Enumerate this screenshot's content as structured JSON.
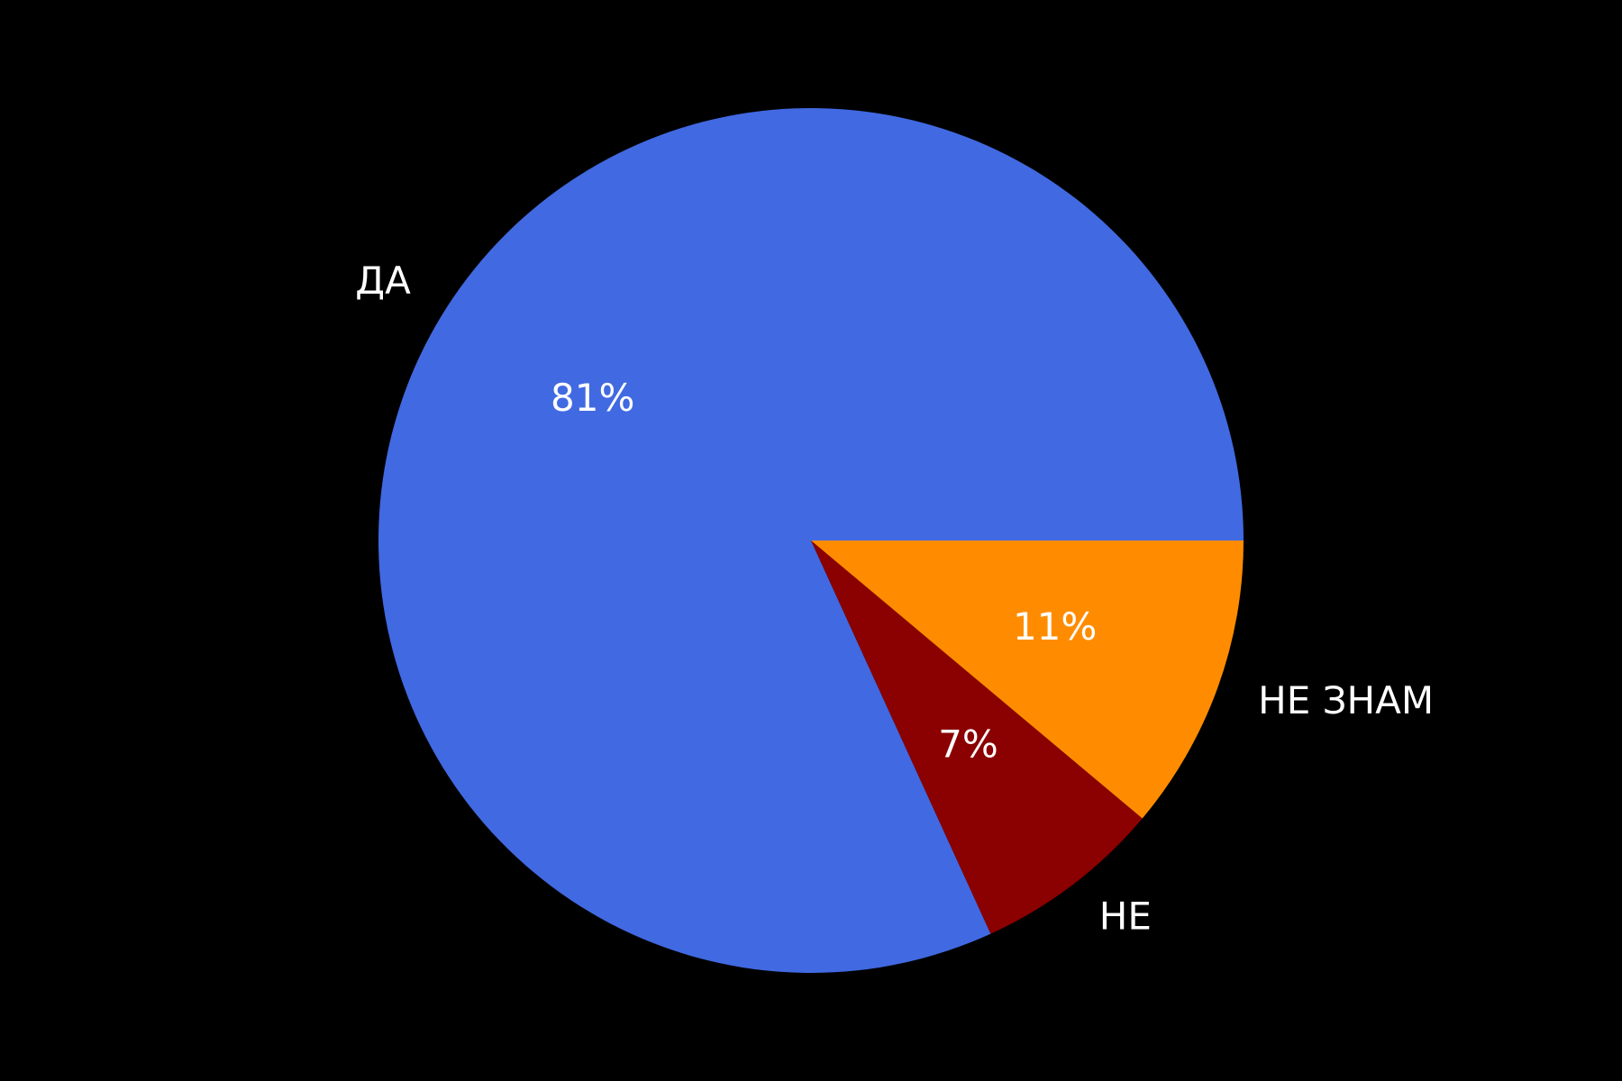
{
  "chart_data": {
    "type": "pie",
    "categories": [
      "ДА",
      "НЕ",
      "НЕ ЗНАМ"
    ],
    "values": [
      81,
      7,
      11
    ],
    "value_labels": [
      "81%",
      "7%",
      "11%"
    ],
    "colors": [
      "#4169E1",
      "#8B0000",
      "#FF8C00"
    ],
    "start_angle_deg": 0,
    "direction": "counterclockwise",
    "background": "#000000",
    "label_color": "#ffffff"
  }
}
